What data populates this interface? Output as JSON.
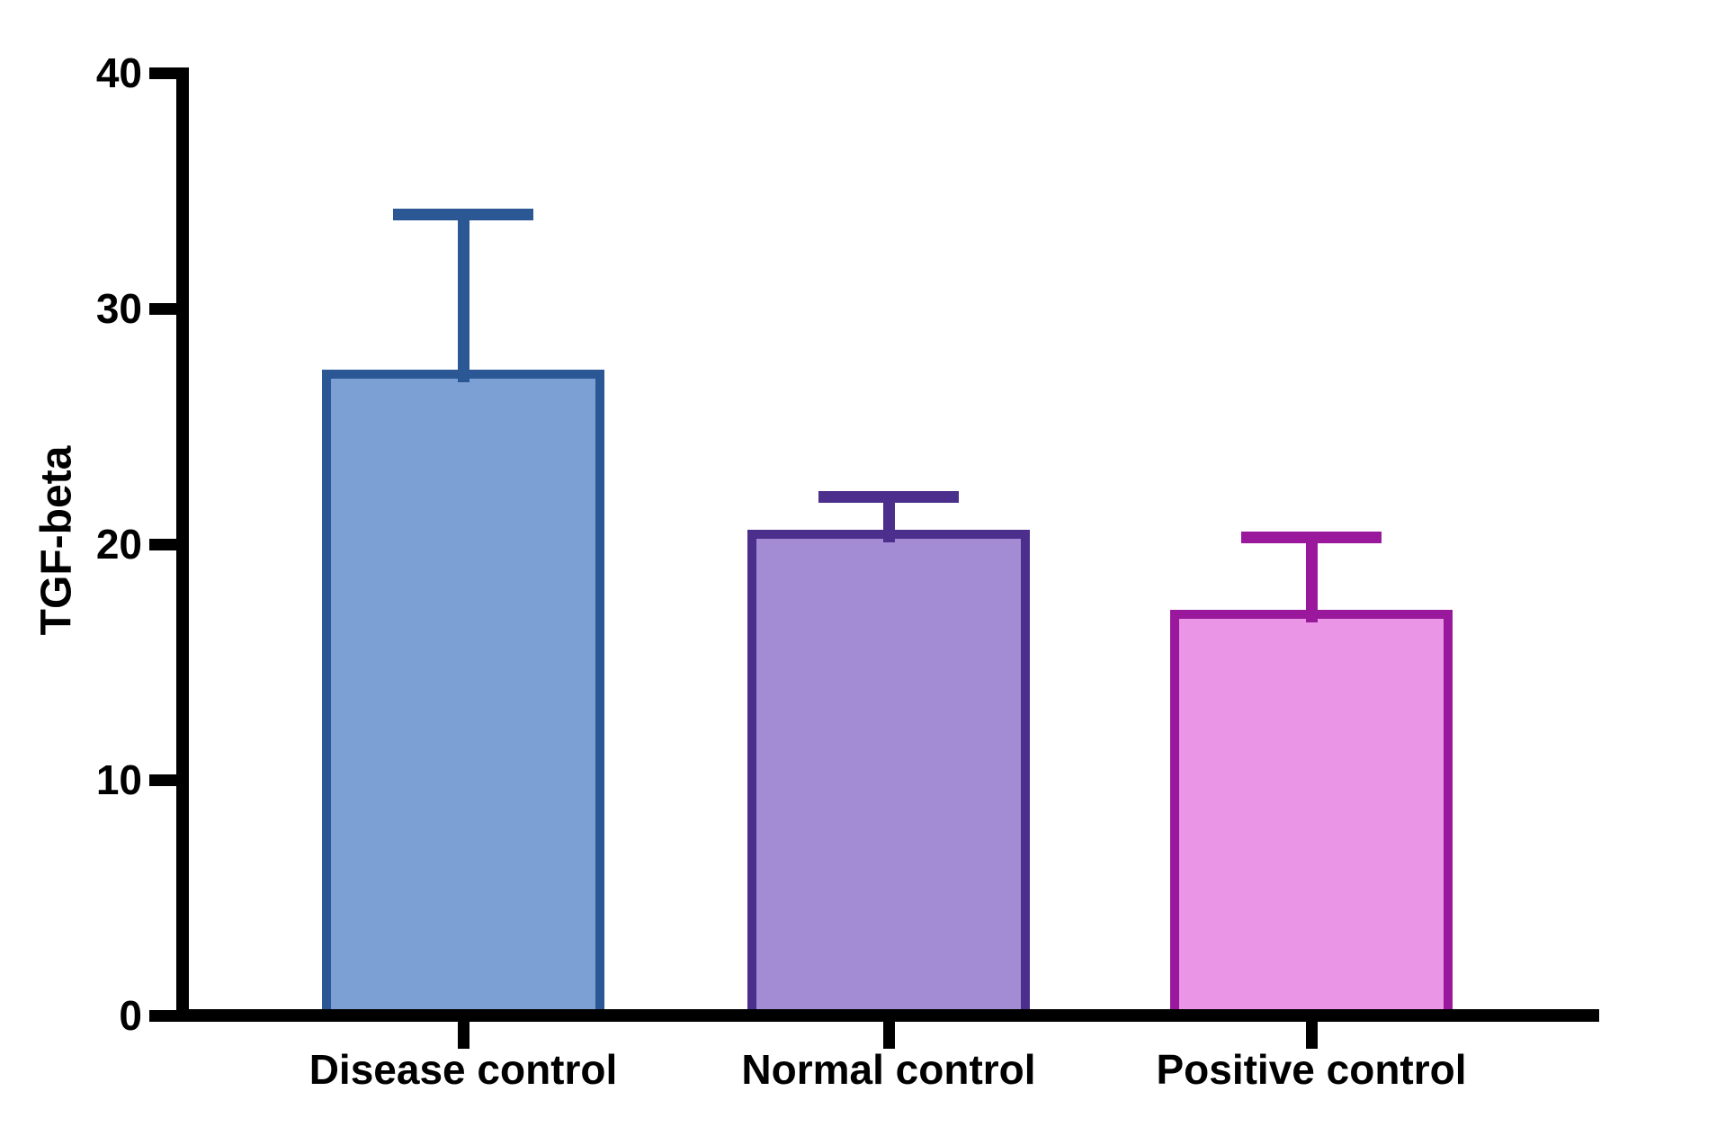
{
  "chart_data": {
    "type": "bar",
    "title": "",
    "xlabel": "",
    "ylabel": "TGF-beta",
    "categories": [
      "Disease control",
      "Normal control",
      "Positive control"
    ],
    "values": [
      27.4,
      20.6,
      17.2
    ],
    "error_up": [
      6.6,
      1.4,
      3.1
    ],
    "error_caps_at": [
      34.0,
      22.0,
      20.3
    ],
    "ylim": [
      0,
      40
    ],
    "yticks": [
      0,
      10,
      20,
      30,
      40
    ],
    "grid": false,
    "legend_position": "none",
    "error_bar_direction": "upper-only",
    "bar_styles": [
      {
        "name": "disease-control-bar",
        "fill": "#7CA0D4",
        "border": "#2C5795"
      },
      {
        "name": "normal-control-bar",
        "fill": "#A38CD4",
        "border": "#4C2E8C"
      },
      {
        "name": "positive-control-bar",
        "fill": "#EB95E6",
        "border": "#9A189B"
      }
    ],
    "axis_color": "#000000",
    "background_color": "#FFFFFF",
    "text_color": "#000000"
  }
}
